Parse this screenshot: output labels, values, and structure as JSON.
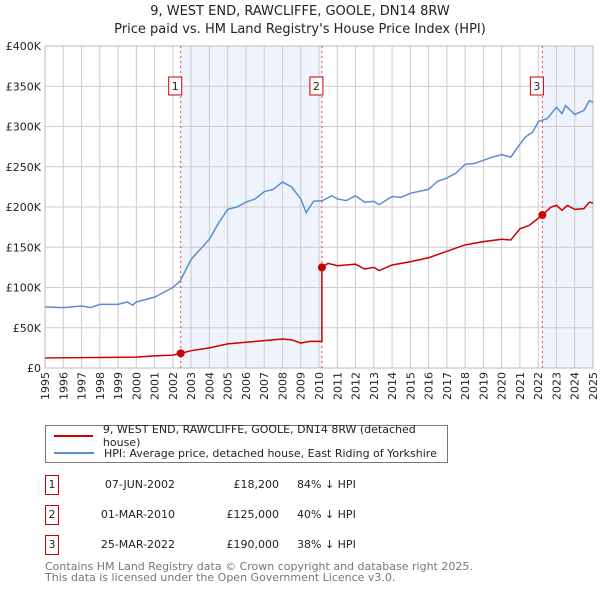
{
  "title": "9, WEST END, RAWCLIFFE, GOOLE, DN14 8RW",
  "subtitle": "Price paid vs. HM Land Registry's House Price Index (HPI)",
  "legend": {
    "property": "9, WEST END, RAWCLIFFE, GOOLE, DN14 8RW (detached house)",
    "hpi": "HPI: Average price, detached house, East Riding of Yorkshire"
  },
  "sales": [
    {
      "n": "1",
      "date": "07-JUN-2002",
      "price": "£18,200",
      "hpi": "84% ↓ HPI"
    },
    {
      "n": "2",
      "date": "01-MAR-2010",
      "price": "£125,000",
      "hpi": "40% ↓ HPI"
    },
    {
      "n": "3",
      "date": "25-MAR-2022",
      "price": "£190,000",
      "hpi": "38% ↓ HPI"
    }
  ],
  "footer": [
    "Contains HM Land Registry data © Crown copyright and database right 2025.",
    "This data is licensed under the Open Government Licence v3.0."
  ],
  "chart_data": {
    "type": "line",
    "xlim": [
      1995,
      2025
    ],
    "ylim": [
      0,
      400000
    ],
    "yticks": [
      0,
      50000,
      100000,
      150000,
      200000,
      250000,
      300000,
      350000,
      400000
    ],
    "ytick_labels": [
      "£0",
      "£50K",
      "£100K",
      "£150K",
      "£200K",
      "£250K",
      "£300K",
      "£350K",
      "£400K"
    ],
    "xticks": [
      "1995",
      "1996",
      "1997",
      "1998",
      "1999",
      "2000",
      "2001",
      "2002",
      "2003",
      "2004",
      "2005",
      "2006",
      "2007",
      "2008",
      "2009",
      "2010",
      "2011",
      "2012",
      "2013",
      "2014",
      "2015",
      "2016",
      "2017",
      "2018",
      "2019",
      "2020",
      "2021",
      "2022",
      "2023",
      "2024",
      "2025"
    ],
    "colors": {
      "property": "#cc0000",
      "hpi": "#5b8fd0",
      "shade": "#eef3fc"
    },
    "sale_points": [
      {
        "label": "1",
        "x": 2002.43,
        "y": 18200
      },
      {
        "label": "2",
        "x": 2010.16,
        "y": 125000
      },
      {
        "label": "3",
        "x": 2022.23,
        "y": 190000
      }
    ],
    "series": [
      {
        "name": "hpi",
        "points": [
          [
            1995,
            76000
          ],
          [
            1996,
            75000
          ],
          [
            1997,
            77000
          ],
          [
            1997.5,
            75000
          ],
          [
            1998,
            79000
          ],
          [
            1999,
            79000
          ],
          [
            1999.5,
            82000
          ],
          [
            1999.8,
            78000
          ],
          [
            2000,
            82000
          ],
          [
            2001,
            88000
          ],
          [
            2002,
            100000
          ],
          [
            2002.4,
            108000
          ],
          [
            2003,
            135000
          ],
          [
            2004,
            160000
          ],
          [
            2004.5,
            180000
          ],
          [
            2005,
            197000
          ],
          [
            2005.5,
            200000
          ],
          [
            2006,
            206000
          ],
          [
            2006.5,
            210000
          ],
          [
            2007,
            219000
          ],
          [
            2007.5,
            222000
          ],
          [
            2008,
            231000
          ],
          [
            2008.5,
            225000
          ],
          [
            2009,
            210000
          ],
          [
            2009.3,
            193000
          ],
          [
            2009.7,
            207000
          ],
          [
            2010.2,
            208000
          ],
          [
            2010.7,
            214000
          ],
          [
            2011,
            210000
          ],
          [
            2011.5,
            208000
          ],
          [
            2012,
            214000
          ],
          [
            2012.5,
            206000
          ],
          [
            2013,
            207000
          ],
          [
            2013.3,
            203000
          ],
          [
            2014,
            213000
          ],
          [
            2014.5,
            212000
          ],
          [
            2015,
            217000
          ],
          [
            2016,
            222000
          ],
          [
            2016.5,
            232000
          ],
          [
            2017,
            236000
          ],
          [
            2017.5,
            242000
          ],
          [
            2018,
            253000
          ],
          [
            2018.5,
            254000
          ],
          [
            2019,
            258000
          ],
          [
            2019.5,
            262000
          ],
          [
            2020,
            265000
          ],
          [
            2020.5,
            262000
          ],
          [
            2021,
            278000
          ],
          [
            2021.3,
            287000
          ],
          [
            2021.7,
            293000
          ],
          [
            2022,
            306000
          ],
          [
            2022.5,
            310000
          ],
          [
            2023,
            324000
          ],
          [
            2023.3,
            316000
          ],
          [
            2023.5,
            326000
          ],
          [
            2024,
            315000
          ],
          [
            2024.5,
            320000
          ],
          [
            2024.8,
            332000
          ],
          [
            2025,
            330000
          ]
        ]
      },
      {
        "name": "property",
        "points": [
          [
            1995,
            12500
          ],
          [
            2000,
            13500
          ],
          [
            2001,
            15000
          ],
          [
            2002,
            16000
          ],
          [
            2002.43,
            18200
          ],
          [
            2003,
            21500
          ],
          [
            2004,
            25000
          ],
          [
            2005,
            30000
          ],
          [
            2006,
            32000
          ],
          [
            2007,
            34000
          ],
          [
            2008,
            36000
          ],
          [
            2008.5,
            35000
          ],
          [
            2009,
            31000
          ],
          [
            2009.5,
            33000
          ],
          [
            2010.16,
            33000
          ],
          [
            2010.16,
            125000
          ],
          [
            2010.5,
            130000
          ],
          [
            2011,
            127000
          ],
          [
            2012,
            129000
          ],
          [
            2012.5,
            123000
          ],
          [
            2013,
            125000
          ],
          [
            2013.3,
            121000
          ],
          [
            2014,
            128000
          ],
          [
            2015,
            132000
          ],
          [
            2016,
            137000
          ],
          [
            2017,
            145000
          ],
          [
            2018,
            153000
          ],
          [
            2019,
            157000
          ],
          [
            2020,
            160000
          ],
          [
            2020.5,
            159000
          ],
          [
            2021,
            173000
          ],
          [
            2021.5,
            177000
          ],
          [
            2022.23,
            190000
          ],
          [
            2022.7,
            200000
          ],
          [
            2023,
            202000
          ],
          [
            2023.3,
            196000
          ],
          [
            2023.6,
            202000
          ],
          [
            2024,
            197000
          ],
          [
            2024.5,
            198000
          ],
          [
            2024.8,
            206000
          ],
          [
            2025,
            205000
          ]
        ]
      }
    ]
  }
}
